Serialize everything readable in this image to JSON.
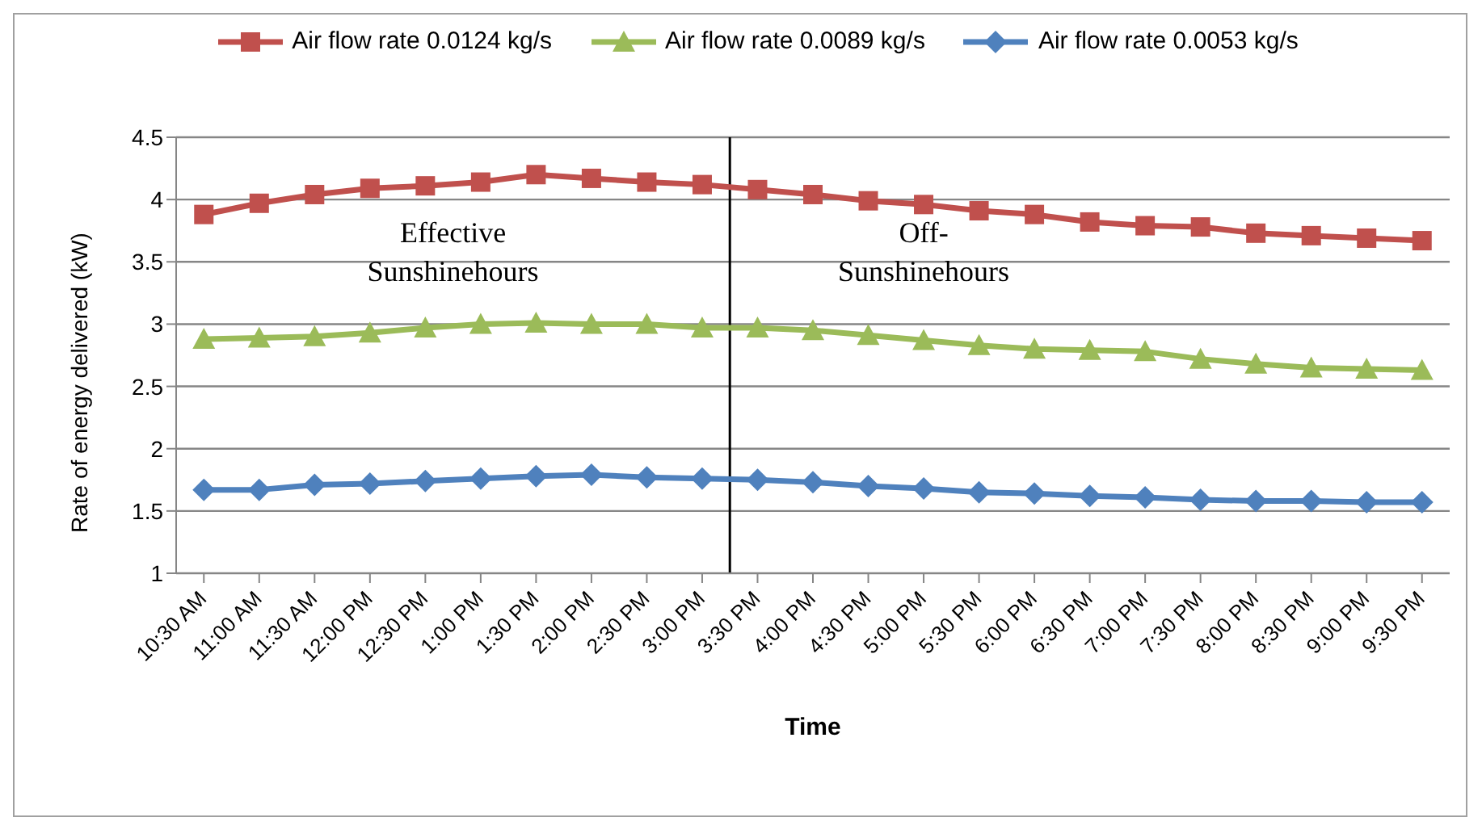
{
  "chart_data": {
    "type": "line",
    "xlabel": "Time",
    "ylabel": "Rate of energy delivered (kW)",
    "categories": [
      "10:30 AM",
      "11:00 AM",
      "11:30 AM",
      "12:00 PM",
      "12:30 PM",
      "1:00 PM",
      "1:30 PM",
      "2:00 PM",
      "2:30 PM",
      "3:00 PM",
      "3:30 PM",
      "4:00 PM",
      "4:30 PM",
      "5:00 PM",
      "5:30 PM",
      "6:00 PM",
      "6:30 PM",
      "7:00 PM",
      "7:30 PM",
      "8:00 PM",
      "8:30 PM",
      "9:00 PM",
      "9:30 PM"
    ],
    "series": [
      {
        "name": "Air flow rate 0.0124 kg/s",
        "color": "#c0504d",
        "marker": "square",
        "values": [
          3.88,
          3.97,
          4.04,
          4.09,
          4.11,
          4.14,
          4.2,
          4.17,
          4.14,
          4.12,
          4.08,
          4.04,
          3.99,
          3.96,
          3.91,
          3.88,
          3.82,
          3.79,
          3.78,
          3.73,
          3.71,
          3.69,
          3.67
        ]
      },
      {
        "name": "Air flow rate 0.0089 kg/s",
        "color": "#9bbb59",
        "marker": "triangle",
        "values": [
          2.88,
          2.89,
          2.9,
          2.93,
          2.97,
          3.0,
          3.01,
          3.0,
          3.0,
          2.97,
          2.97,
          2.95,
          2.91,
          2.87,
          2.83,
          2.8,
          2.79,
          2.78,
          2.72,
          2.68,
          2.65,
          2.64,
          2.63
        ]
      },
      {
        "name": "Air flow rate 0.0053 kg/s",
        "color": "#4f81bd",
        "marker": "diamond",
        "values": [
          1.67,
          1.67,
          1.71,
          1.72,
          1.74,
          1.76,
          1.78,
          1.79,
          1.77,
          1.76,
          1.75,
          1.73,
          1.7,
          1.68,
          1.65,
          1.64,
          1.62,
          1.61,
          1.59,
          1.58,
          1.58,
          1.57,
          1.57
        ]
      }
    ],
    "ylim": [
      1,
      4.5
    ],
    "yticks": [
      1,
      1.5,
      2,
      2.5,
      3,
      3.5,
      4,
      4.5
    ],
    "grid": "y",
    "legend": "top",
    "ref_lines": [
      {
        "axis": "x",
        "value": "3:00 PM",
        "color": "#000000"
      }
    ],
    "annotations": [
      "Effective Sunshinehours",
      "Off-Sunshinehours"
    ]
  }
}
